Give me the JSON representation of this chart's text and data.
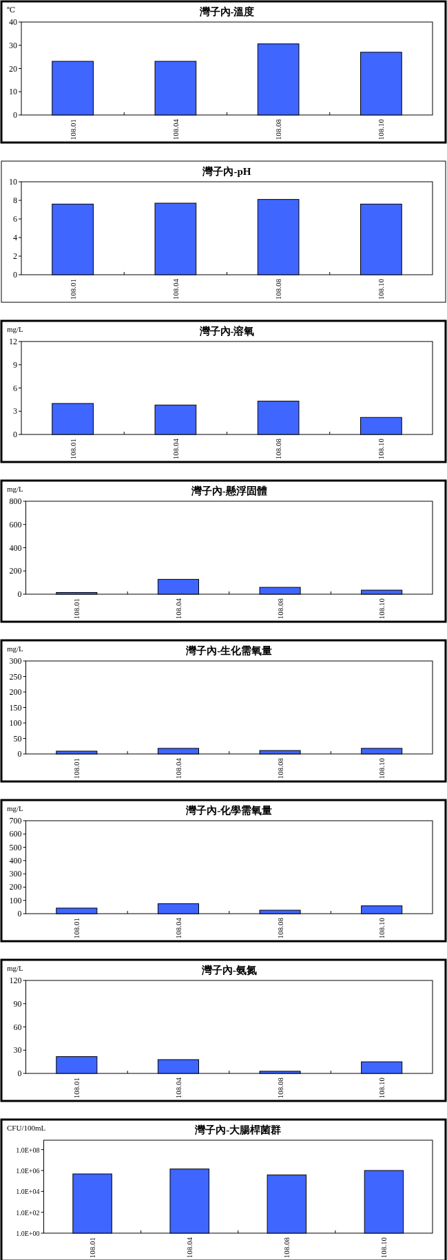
{
  "chart_data": [
    {
      "type": "bar",
      "title": "灣子內-溫度",
      "ylabel": "℃",
      "categories": [
        "108.01",
        "108.04",
        "108.08",
        "108.10"
      ],
      "values": [
        23.1,
        23.1,
        30.6,
        27.0
      ],
      "color": "#3f66ff",
      "ylim": [
        0,
        40
      ],
      "yticks": [
        0,
        10,
        20,
        30,
        40
      ]
    },
    {
      "type": "bar",
      "title": "灣子內-pH",
      "categories": [
        "108.01",
        "108.04",
        "108.08",
        "108.10"
      ],
      "values": [
        7.6,
        7.7,
        8.1,
        7.6
      ],
      "color": "#3f66ff",
      "ylim": [
        0,
        10
      ],
      "yticks": [
        0,
        2,
        4,
        6,
        8,
        10
      ]
    },
    {
      "type": "bar",
      "title": "灣子內-溶氧",
      "ylabel": "mg/L",
      "categories": [
        "108.01",
        "108.04",
        "108.08",
        "108.10"
      ],
      "values": [
        4.0,
        3.8,
        4.3,
        2.2
      ],
      "color": "#3f66ff",
      "ylim": [
        0,
        12
      ],
      "yticks": [
        0,
        3,
        6,
        9,
        12
      ]
    },
    {
      "type": "bar",
      "title": "灣子內-懸浮固體",
      "ylabel": "mg/L",
      "categories": [
        "108.01",
        "108.04",
        "108.08",
        "108.10"
      ],
      "values": [
        15,
        128,
        59,
        35
      ],
      "color": "#3f66ff",
      "ylim": [
        0,
        800
      ],
      "yticks": [
        0,
        200,
        400,
        600,
        800
      ]
    },
    {
      "type": "bar",
      "title": "灣子內-生化需氧量",
      "ylabel": "mg/L",
      "categories": [
        "108.01",
        "108.04",
        "108.08",
        "108.10"
      ],
      "values": [
        9,
        18,
        11,
        18
      ],
      "color": "#3f66ff",
      "ylim": [
        0,
        300
      ],
      "yticks": [
        0,
        50,
        100,
        150,
        200,
        250,
        300
      ]
    },
    {
      "type": "bar",
      "title": "灣子內-化學需氧量",
      "ylabel": "mg/L",
      "categories": [
        "108.01",
        "108.04",
        "108.08",
        "108.10"
      ],
      "values": [
        42,
        75,
        26,
        59
      ],
      "color": "#3f66ff",
      "ylim": [
        0,
        700
      ],
      "yticks": [
        0,
        100,
        200,
        300,
        400,
        500,
        600,
        700
      ]
    },
    {
      "type": "bar",
      "title": "灣子內-氨氮",
      "ylabel": "mg/L",
      "categories": [
        "108.01",
        "108.04",
        "108.08",
        "108.10"
      ],
      "values": [
        21.7,
        17.8,
        2.8,
        15.0
      ],
      "color": "#3f66ff",
      "ylim": [
        0,
        120
      ],
      "yticks": [
        0,
        30,
        60,
        90,
        120
      ]
    },
    {
      "type": "bar",
      "title": "灣子內-大腸桿菌群",
      "ylabel": "CFU/100mL",
      "categories": [
        "108.01",
        "108.04",
        "108.08",
        "108.10"
      ],
      "values": [
        470000,
        1400000,
        380000,
        1000000
      ],
      "color": "#3f66ff",
      "log": true,
      "ylim": [
        1,
        800000000
      ],
      "yticks": [
        {
          "value": 1,
          "label": "1.0E+00"
        },
        {
          "value": 100,
          "label": "1.0E+02"
        },
        {
          "value": 10000,
          "label": "1.0E+04"
        },
        {
          "value": 1000000,
          "label": "1.0E+06"
        },
        {
          "value": 100000000,
          "label": "1.0E+08"
        }
      ]
    }
  ]
}
